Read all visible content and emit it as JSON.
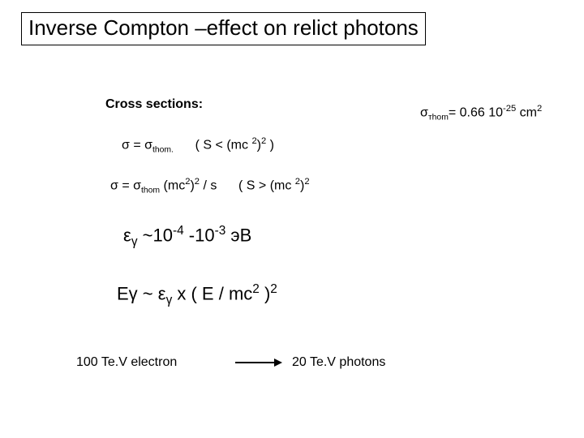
{
  "title": "Inverse Compton –effect on relict photons",
  "labels": {
    "cross_sections": "Cross sections:"
  },
  "constants": {
    "sigma_thom_prefix": "σ",
    "sigma_thom_sub": "тhom",
    "sigma_thom_eq": "= 0.66 10",
    "sigma_thom_exp": "-25",
    "sigma_thom_unit": " cm",
    "sigma_thom_unit_exp": "2"
  },
  "equations": {
    "eq1": {
      "lhs_sigma": "σ =  σ",
      "lhs_sub": "thom.",
      "cond_open": "( S < (mc ",
      "cond_exp1": "2",
      "cond_mid": ")",
      "cond_exp2": "2",
      "cond_close": "  )"
    },
    "eq2": {
      "lhs": "σ = σ",
      "lhs_sub": "thom",
      "times": " (mc",
      "exp1": "2",
      "mid1": ")",
      "exp2": "2",
      "over_s": " / s",
      "cond_open": "( S > (mc ",
      "cexp1": "2",
      "cmid": ")",
      "cexp2": "2"
    },
    "eps": {
      "sym": "ε",
      "sub": "γ",
      "range": "  ~10",
      "e1": "-4",
      "dash": " -10",
      "e2": "-3",
      "unit": " эВ"
    },
    "egamma": {
      "lhs": "Eγ  ~ ε",
      "sub": "γ",
      "times": "  x ( E / mc",
      "exp": "2",
      "close": " )",
      "outexp": "2"
    }
  },
  "bottom": {
    "left": "100 Te.V  electron",
    "right": "20 Te.V photons"
  },
  "colors": {
    "text": "#000000",
    "background": "#ffffff",
    "border": "#000000"
  }
}
